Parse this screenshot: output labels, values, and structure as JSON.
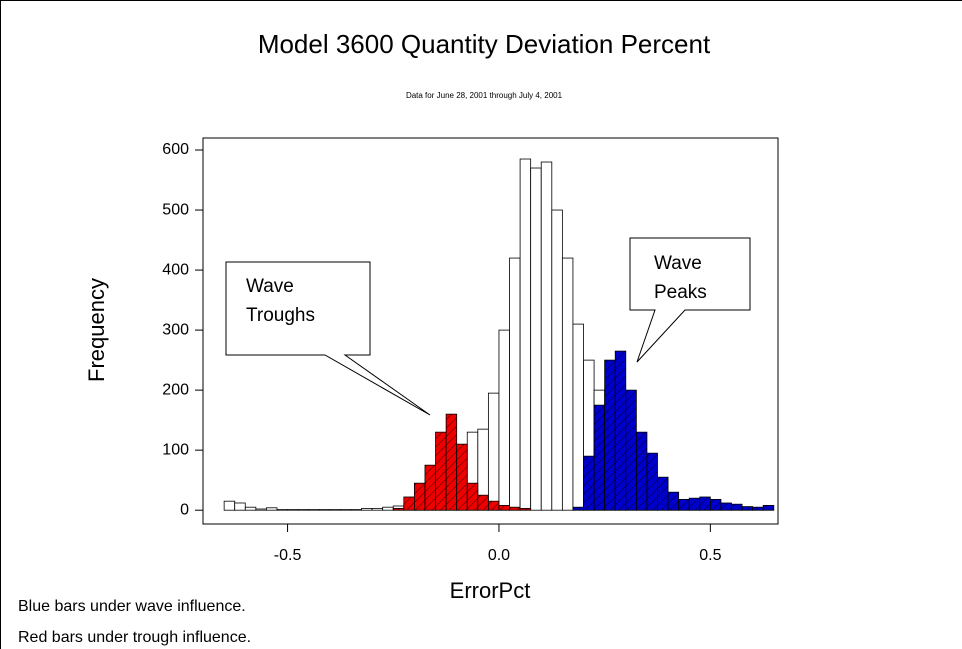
{
  "chart_data": {
    "type": "histogram",
    "title": "Model 3600 Quantity Deviation Percent",
    "subtitle": "Data for June 28, 2001 through July 4, 2001",
    "x_label": "ErrorPct",
    "y_label": "Frequency",
    "bins": [
      -0.65,
      -0.625,
      -0.6,
      -0.575,
      -0.55,
      -0.525,
      -0.5,
      -0.475,
      -0.45,
      -0.425,
      -0.4,
      -0.375,
      -0.35,
      -0.325,
      -0.3,
      -0.275,
      -0.25,
      -0.225,
      -0.2,
      -0.175,
      -0.15,
      -0.125,
      -0.1,
      -0.075,
      -0.05,
      -0.025,
      0,
      0.025,
      0.05,
      0.075,
      0.1,
      0.125,
      0.15,
      0.175,
      0.2,
      0.225,
      0.25,
      0.275,
      0.3,
      0.325,
      0.35,
      0.375,
      0.4,
      0.425,
      0.45,
      0.475,
      0.5,
      0.525,
      0.55,
      0.575,
      0.6,
      0.625,
      0.65
    ],
    "series": [
      {
        "color": "#ffffff",
        "values": [
          15,
          12,
          5,
          2,
          4,
          1,
          1,
          1,
          1,
          1,
          1,
          1,
          1,
          3,
          3,
          5,
          7,
          10,
          13,
          18,
          22,
          40,
          80,
          130,
          135,
          195,
          300,
          420,
          585,
          570,
          580,
          500,
          420,
          310,
          250,
          200,
          140,
          100,
          60,
          30,
          20,
          15,
          10,
          8,
          6,
          5,
          4,
          3,
          2,
          2,
          1,
          1
        ]
      },
      {
        "color": "#ee0000",
        "values": [
          0,
          0,
          0,
          0,
          0,
          0,
          0,
          0,
          0,
          0,
          0,
          0,
          0,
          0,
          0,
          0,
          3,
          22,
          45,
          75,
          130,
          160,
          110,
          45,
          25,
          15,
          8,
          5,
          3,
          0,
          0,
          0,
          0,
          0,
          0,
          0,
          0,
          0,
          0,
          0,
          0,
          0,
          0,
          0,
          0,
          0,
          0,
          0,
          0,
          0,
          0,
          0
        ]
      },
      {
        "color": "#0000cc",
        "values": [
          0,
          0,
          0,
          0,
          0,
          0,
          0,
          0,
          0,
          0,
          0,
          0,
          0,
          0,
          0,
          0,
          0,
          0,
          0,
          0,
          0,
          0,
          0,
          0,
          0,
          0,
          0,
          0,
          0,
          0,
          0,
          0,
          0,
          5,
          90,
          175,
          250,
          265,
          200,
          130,
          95,
          55,
          30,
          18,
          20,
          22,
          18,
          12,
          10,
          6,
          5,
          8
        ]
      }
    ],
    "xlim": [
      -0.7,
      0.66
    ],
    "ylim": [
      -23,
      620
    ],
    "xticks": [
      -0.5,
      {
        "value": 0,
        "label": "0.0"
      },
      0.5
    ],
    "yticks": [
      0,
      100,
      200,
      300,
      400,
      500,
      600
    ],
    "annotations": [
      {
        "lines": [
          "Wave",
          "Troughs"
        ]
      },
      {
        "lines": [
          "Wave",
          "Peaks"
        ]
      }
    ],
    "notes": [
      "Blue bars under wave influence.",
      "Red bars under trough influence."
    ]
  }
}
